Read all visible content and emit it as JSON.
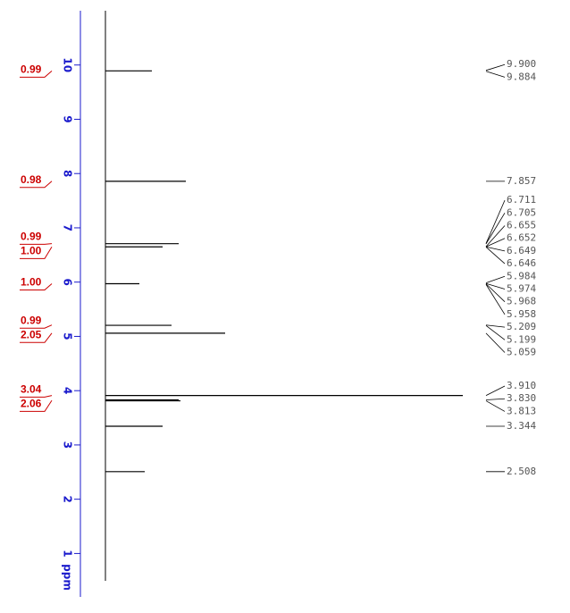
{
  "chart_data": {
    "type": "nmr",
    "y_label": "ppm",
    "ylim": [
      11,
      0.2
    ],
    "yticks": [
      1,
      2,
      3,
      4,
      5,
      6,
      7,
      8,
      9,
      10
    ],
    "axis_color": "#1a1acc",
    "integral_color": "#cc0000",
    "spectrum_color": "#000000",
    "peaks": [
      {
        "ppm": 9.892,
        "intensity": 13
      },
      {
        "ppm": 7.857,
        "intensity": 22.5
      },
      {
        "ppm": 6.708,
        "intensity": 20.5
      },
      {
        "ppm": 6.65,
        "intensity": 16
      },
      {
        "ppm": 5.97,
        "intensity": 9.5
      },
      {
        "ppm": 5.204,
        "intensity": 18.5
      },
      {
        "ppm": 5.059,
        "intensity": 33.5
      },
      {
        "ppm": 3.91,
        "intensity": 100
      },
      {
        "ppm": 3.83,
        "intensity": 20.5
      },
      {
        "ppm": 3.813,
        "intensity": 21
      },
      {
        "ppm": 3.344,
        "intensity": 16
      },
      {
        "ppm": 2.508,
        "intensity": 11
      }
    ],
    "integrals": [
      {
        "ppm": 9.89,
        "label": "0.99"
      },
      {
        "ppm": 7.86,
        "label": "0.98"
      },
      {
        "ppm": 6.71,
        "label": "0.99"
      },
      {
        "ppm": 6.65,
        "label": "1.00"
      },
      {
        "ppm": 5.97,
        "label": "1.00"
      },
      {
        "ppm": 5.21,
        "label": "0.99"
      },
      {
        "ppm": 5.06,
        "label": "2.05"
      },
      {
        "ppm": 3.91,
        "label": "3.04"
      },
      {
        "ppm": 3.82,
        "label": "2.06"
      }
    ],
    "peak_labels": [
      {
        "value": 9.9,
        "label": "9.900"
      },
      {
        "value": 9.884,
        "label": "9.884"
      },
      {
        "value": 7.857,
        "label": "7.857"
      },
      {
        "value": 6.711,
        "label": "6.711"
      },
      {
        "value": 6.705,
        "label": "6.705"
      },
      {
        "value": 6.655,
        "label": "6.655"
      },
      {
        "value": 6.652,
        "label": "6.652"
      },
      {
        "value": 6.649,
        "label": "6.649"
      },
      {
        "value": 6.646,
        "label": "6.646"
      },
      {
        "value": 5.984,
        "label": "5.984"
      },
      {
        "value": 5.974,
        "label": "5.974"
      },
      {
        "value": 5.968,
        "label": "5.968"
      },
      {
        "value": 5.958,
        "label": "5.958"
      },
      {
        "value": 5.209,
        "label": "5.209"
      },
      {
        "value": 5.199,
        "label": "5.199"
      },
      {
        "value": 5.059,
        "label": "5.059"
      },
      {
        "value": 3.91,
        "label": "3.910"
      },
      {
        "value": 3.83,
        "label": "3.830"
      },
      {
        "value": 3.813,
        "label": "3.813"
      },
      {
        "value": 3.344,
        "label": "3.344"
      },
      {
        "value": 2.508,
        "label": "2.508"
      }
    ]
  }
}
